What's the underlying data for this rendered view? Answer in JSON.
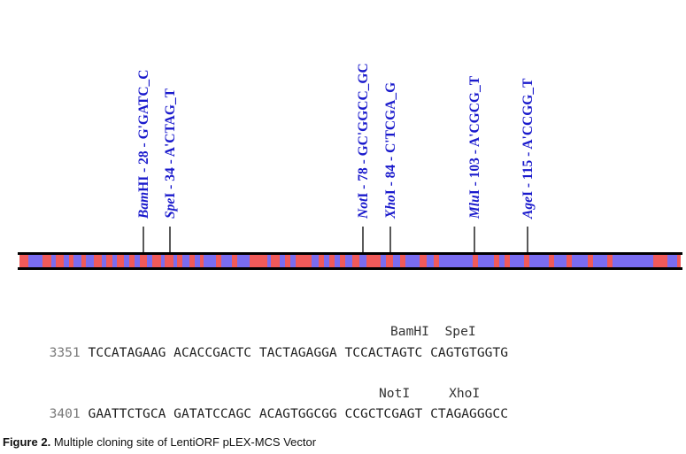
{
  "sites": [
    {
      "name": "BamHI",
      "pos": "28",
      "seq": "G'GATC_C"
    },
    {
      "name": "SpeI",
      "pos": "34",
      "seq": "A'CTAG_T"
    },
    {
      "name": "NotI",
      "pos": "78",
      "seq": "GC'GGCC_GC"
    },
    {
      "name": "XhoI",
      "pos": "84",
      "seq": "C'TCGA_G"
    },
    {
      "name": "MluI",
      "pos": "103",
      "seq": "A'CGCG_T"
    },
    {
      "name": "AgeI",
      "pos": "115",
      "seq": "A'CCGG_T"
    }
  ],
  "colors": {
    "site_text": "#1a1acc",
    "bar_blue": "#7a6cf0",
    "bar_red": "#f05a5a"
  },
  "sequence": [
    {
      "enzymes": "BamHI  SpeI",
      "number": "3351",
      "text": "TCCATAGAAG ACACCGACTC TACTAGAGGA TCCACTAGTC CAGTGTGGTG"
    },
    {
      "enzymes": "NotI     XhoI",
      "number": "3401",
      "text": "GAATTCTGCA GATATCCAGC ACAGTGGCGG CCGCTCGAGT CTAGAGGGCC"
    }
  ],
  "caption": {
    "label": "Figure 2.",
    "text": "Multiple cloning site of LentiORF pLEX-MCS Vector"
  }
}
